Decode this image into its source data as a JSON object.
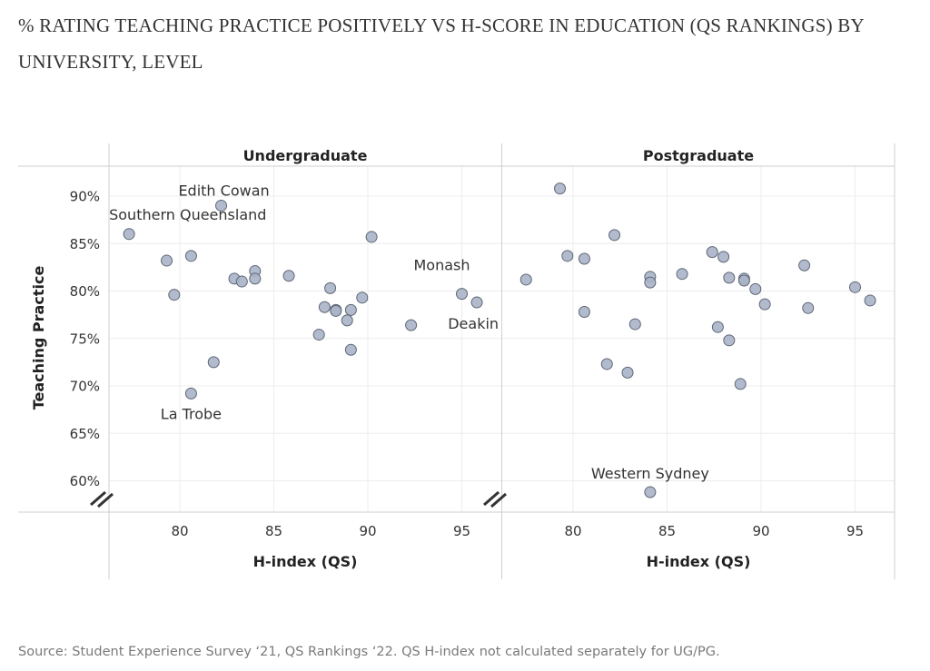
{
  "title": "% RATING TEACHING PRACTICE POSITIVELY VS H-SCORE IN EDUCATION (QS RANKINGS) BY UNIVERSITY, LEVEL",
  "source": "Source: Student Experience Survey ‘21, QS Rankings ‘22. QS H-index not calculated separately for UG/PG.",
  "colors": {
    "point_fill": "#a9b4c8",
    "point_stroke": "#5e6675",
    "grid": "#ececec",
    "axis": "#cfcfcf"
  },
  "chart_data": {
    "type": "scatter",
    "ylabel": "Teaching Practice",
    "xlabel": "H-index (QS)",
    "ylim": [
      56,
      93
    ],
    "xlim": [
      76,
      97
    ],
    "yticks": [
      60,
      65,
      70,
      75,
      80,
      85,
      90
    ],
    "ytick_labels": [
      "60%",
      "65%",
      "70%",
      "75%",
      "80%",
      "85%",
      "90%"
    ],
    "xticks": [
      80,
      85,
      90,
      95
    ],
    "xtick_labels": [
      "80",
      "85",
      "90",
      "95"
    ],
    "axis_break": true,
    "grid": true,
    "panels": [
      {
        "name": "Undergraduate",
        "points": [
          {
            "x": 77.3,
            "y": 86.0
          },
          {
            "x": 79.3,
            "y": 83.2
          },
          {
            "x": 79.7,
            "y": 79.6
          },
          {
            "x": 80.6,
            "y": 83.7
          },
          {
            "x": 80.6,
            "y": 69.2
          },
          {
            "x": 81.8,
            "y": 72.5
          },
          {
            "x": 82.2,
            "y": 89.0
          },
          {
            "x": 82.9,
            "y": 81.3
          },
          {
            "x": 83.3,
            "y": 81.0
          },
          {
            "x": 84.0,
            "y": 82.1
          },
          {
            "x": 84.0,
            "y": 81.3
          },
          {
            "x": 85.8,
            "y": 81.6
          },
          {
            "x": 87.4,
            "y": 75.4
          },
          {
            "x": 87.7,
            "y": 78.3
          },
          {
            "x": 88.0,
            "y": 80.3
          },
          {
            "x": 88.3,
            "y": 78.0
          },
          {
            "x": 88.3,
            "y": 77.9
          },
          {
            "x": 88.9,
            "y": 76.9
          },
          {
            "x": 89.1,
            "y": 78.0
          },
          {
            "x": 89.1,
            "y": 73.8
          },
          {
            "x": 89.7,
            "y": 79.3
          },
          {
            "x": 90.2,
            "y": 85.7
          },
          {
            "x": 92.3,
            "y": 76.4
          },
          {
            "x": 95.0,
            "y": 79.7
          },
          {
            "x": 95.8,
            "y": 78.8
          }
        ],
        "annotations": [
          {
            "text": "Edith Cowan",
            "x": 82.2,
            "y": 89.0
          },
          {
            "text": "Southern Queensland",
            "x": 77.3,
            "y": 86.0
          },
          {
            "text": "La Trobe",
            "x": 80.6,
            "y": 69.2
          },
          {
            "text": "Monash",
            "x": 95.0,
            "y": 79.7
          },
          {
            "text": "Deakin",
            "x": 95.8,
            "y": 78.8
          }
        ]
      },
      {
        "name": "Postgraduate",
        "points": [
          {
            "x": 77.5,
            "y": 81.2
          },
          {
            "x": 79.3,
            "y": 90.8
          },
          {
            "x": 79.7,
            "y": 83.7
          },
          {
            "x": 80.6,
            "y": 83.4
          },
          {
            "x": 80.6,
            "y": 77.8
          },
          {
            "x": 81.8,
            "y": 72.3
          },
          {
            "x": 82.2,
            "y": 85.9
          },
          {
            "x": 82.9,
            "y": 71.4
          },
          {
            "x": 83.3,
            "y": 76.5
          },
          {
            "x": 84.1,
            "y": 81.5
          },
          {
            "x": 84.1,
            "y": 80.9
          },
          {
            "x": 84.1,
            "y": 58.8
          },
          {
            "x": 85.8,
            "y": 81.8
          },
          {
            "x": 87.4,
            "y": 84.1
          },
          {
            "x": 87.7,
            "y": 76.2
          },
          {
            "x": 88.0,
            "y": 83.6
          },
          {
            "x": 88.3,
            "y": 81.4
          },
          {
            "x": 88.3,
            "y": 74.8
          },
          {
            "x": 88.9,
            "y": 70.2
          },
          {
            "x": 89.1,
            "y": 81.3
          },
          {
            "x": 89.1,
            "y": 81.1
          },
          {
            "x": 89.7,
            "y": 80.2
          },
          {
            "x": 90.2,
            "y": 78.6
          },
          {
            "x": 92.3,
            "y": 82.7
          },
          {
            "x": 92.5,
            "y": 78.2
          },
          {
            "x": 95.0,
            "y": 80.4
          },
          {
            "x": 95.8,
            "y": 79.0
          }
        ],
        "annotations": [
          {
            "text": "Western Sydney",
            "x": 84.1,
            "y": 58.8
          }
        ]
      }
    ]
  }
}
